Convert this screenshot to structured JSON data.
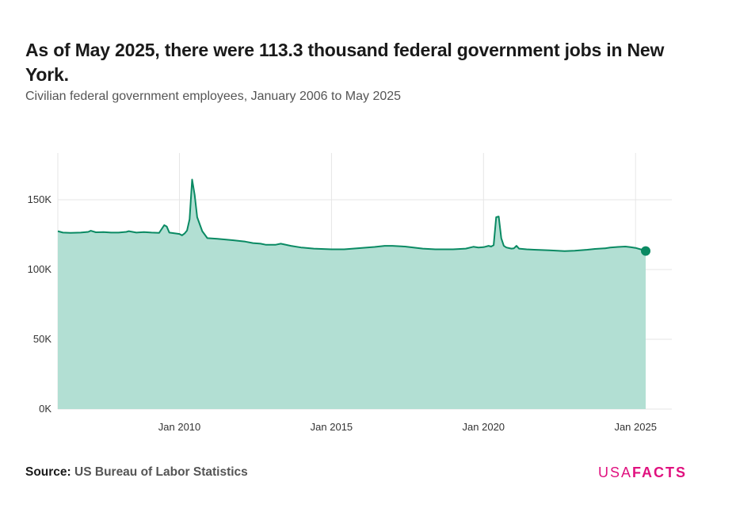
{
  "header": {
    "title": "As of May 2025, there were 113.3 thousand federal government jobs in New York.",
    "subtitle": "Civilian federal government employees, January 2006 to May 2025"
  },
  "footer": {
    "source_label": "Source:",
    "source_value": "US Bureau of Labor Statistics",
    "logo_usa": "USA",
    "logo_facts": "FACTS"
  },
  "colors": {
    "line": "#0a8a63",
    "area": "#b2dfd3",
    "grid": "#e6e6e6",
    "logo": "#e0117f"
  },
  "chart_data": {
    "type": "area",
    "title": "As of May 2025, there were 113.3 thousand federal government jobs in New York.",
    "subtitle": "Civilian federal government employees, January 2006 to May 2025",
    "xlabel": "",
    "ylabel": "",
    "x_range": [
      "2006-01",
      "2025-05"
    ],
    "ylim": [
      0,
      180000
    ],
    "y_ticks": [
      0,
      50000,
      100000,
      150000
    ],
    "y_tick_labels": [
      "0K",
      "50K",
      "100K",
      "150K"
    ],
    "x_ticks": [
      "2010-01",
      "2015-01",
      "2020-01",
      "2025-01"
    ],
    "x_tick_labels": [
      "Jan 2010",
      "Jan 2015",
      "Jan 2020",
      "Jan 2025"
    ],
    "grid": true,
    "highlight_last_point": true,
    "series": [
      {
        "points": [
          [
            "2006-01",
            127500
          ],
          [
            "2006-03",
            126500
          ],
          [
            "2006-06",
            126300
          ],
          [
            "2006-10",
            126500
          ],
          [
            "2007-01",
            127000
          ],
          [
            "2007-02",
            127800
          ],
          [
            "2007-04",
            126700
          ],
          [
            "2007-07",
            126800
          ],
          [
            "2007-10",
            126500
          ],
          [
            "2008-01",
            126500
          ],
          [
            "2008-04",
            127000
          ],
          [
            "2008-05",
            127500
          ],
          [
            "2008-08",
            126500
          ],
          [
            "2008-11",
            126800
          ],
          [
            "2009-02",
            126500
          ],
          [
            "2009-05",
            126300
          ],
          [
            "2009-07",
            131800
          ],
          [
            "2009-08",
            130800
          ],
          [
            "2009-09",
            126500
          ],
          [
            "2009-11",
            126000
          ],
          [
            "2010-01",
            125500
          ],
          [
            "2010-02",
            124500
          ],
          [
            "2010-03",
            125800
          ],
          [
            "2010-04",
            128000
          ],
          [
            "2010-05",
            136000
          ],
          [
            "2010-06",
            164500
          ],
          [
            "2010-07",
            153500
          ],
          [
            "2010-08",
            137500
          ],
          [
            "2010-10",
            127500
          ],
          [
            "2010-12",
            122500
          ],
          [
            "2011-04",
            122000
          ],
          [
            "2011-10",
            121000
          ],
          [
            "2012-03",
            120000
          ],
          [
            "2012-06",
            119000
          ],
          [
            "2012-09",
            118500
          ],
          [
            "2012-11",
            117800
          ],
          [
            "2013-03",
            117800
          ],
          [
            "2013-05",
            118500
          ],
          [
            "2013-09",
            117000
          ],
          [
            "2014-01",
            115800
          ],
          [
            "2014-06",
            115000
          ],
          [
            "2015-01",
            114500
          ],
          [
            "2015-06",
            114500
          ],
          [
            "2016-01",
            115500
          ],
          [
            "2016-06",
            116200
          ],
          [
            "2016-10",
            117000
          ],
          [
            "2017-01",
            117000
          ],
          [
            "2017-06",
            116500
          ],
          [
            "2018-01",
            115000
          ],
          [
            "2018-06",
            114500
          ],
          [
            "2019-01",
            114500
          ],
          [
            "2019-06",
            115000
          ],
          [
            "2019-09",
            116300
          ],
          [
            "2019-11",
            115800
          ],
          [
            "2020-01",
            116000
          ],
          [
            "2020-03",
            117000
          ],
          [
            "2020-04",
            116500
          ],
          [
            "2020-05",
            117500
          ],
          [
            "2020-06",
            137500
          ],
          [
            "2020-07",
            138000
          ],
          [
            "2020-08",
            122500
          ],
          [
            "2020-09",
            117000
          ],
          [
            "2020-10",
            115800
          ],
          [
            "2020-12",
            115000
          ],
          [
            "2021-01",
            115200
          ],
          [
            "2021-02",
            117000
          ],
          [
            "2021-03",
            115000
          ],
          [
            "2021-06",
            114500
          ],
          [
            "2021-09",
            114200
          ],
          [
            "2021-12",
            114000
          ],
          [
            "2022-03",
            113800
          ],
          [
            "2022-06",
            113500
          ],
          [
            "2022-09",
            113200
          ],
          [
            "2023-01",
            113500
          ],
          [
            "2023-06",
            114200
          ],
          [
            "2023-09",
            114800
          ],
          [
            "2024-01",
            115200
          ],
          [
            "2024-03",
            115800
          ],
          [
            "2024-06",
            116200
          ],
          [
            "2024-09",
            116500
          ],
          [
            "2024-11",
            116000
          ],
          [
            "2025-01",
            115500
          ],
          [
            "2025-03",
            114500
          ],
          [
            "2025-05",
            113300
          ]
        ]
      }
    ]
  }
}
